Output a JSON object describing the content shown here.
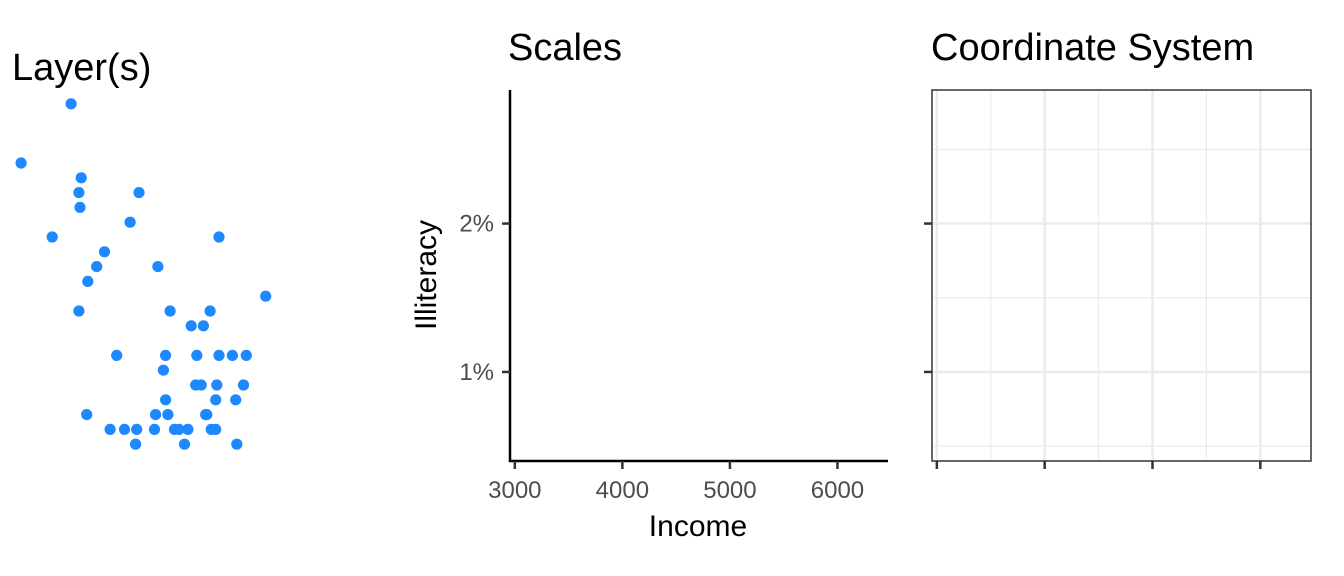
{
  "chart_data": [
    {
      "panel": "layers",
      "type": "scatter",
      "title": "Layer(s)",
      "xlabel": "",
      "ylabel": "",
      "xlim": [
        3000,
        6400
      ],
      "ylim": [
        0.4,
        2.9
      ],
      "axes": false,
      "grid": false,
      "point_color": "#1e88ff",
      "points": [
        [
          3100,
          2.4
        ],
        [
          3550,
          2.8
        ],
        [
          3640,
          2.3
        ],
        [
          3620,
          2.2
        ],
        [
          3630,
          2.1
        ],
        [
          3380,
          1.9
        ],
        [
          4160,
          2.2
        ],
        [
          4330,
          1.7
        ],
        [
          4880,
          1.9
        ],
        [
          4080,
          2.0
        ],
        [
          3850,
          1.8
        ],
        [
          3780,
          1.7
        ],
        [
          3700,
          1.6
        ],
        [
          3620,
          1.4
        ],
        [
          5300,
          1.5
        ],
        [
          4440,
          1.4
        ],
        [
          4800,
          1.4
        ],
        [
          4630,
          1.3
        ],
        [
          4740,
          1.3
        ],
        [
          4400,
          1.1
        ],
        [
          4680,
          1.1
        ],
        [
          4880,
          1.1
        ],
        [
          5000,
          1.1
        ],
        [
          5125,
          1.1
        ],
        [
          4670,
          0.9
        ],
        [
          4720,
          0.9
        ],
        [
          4860,
          0.9
        ],
        [
          5100,
          0.9
        ],
        [
          3960,
          1.1
        ],
        [
          4380,
          1.0
        ],
        [
          4400,
          0.8
        ],
        [
          4420,
          0.7
        ],
        [
          3690,
          0.7
        ],
        [
          3900,
          0.6
        ],
        [
          4030,
          0.6
        ],
        [
          4140,
          0.6
        ],
        [
          4300,
          0.6
        ],
        [
          4310,
          0.7
        ],
        [
          4480,
          0.6
        ],
        [
          4520,
          0.6
        ],
        [
          4600,
          0.6
        ],
        [
          4810,
          0.6
        ],
        [
          4850,
          0.6
        ],
        [
          4130,
          0.5
        ],
        [
          4570,
          0.5
        ],
        [
          4770,
          0.7
        ],
        [
          4760,
          0.7
        ],
        [
          4850,
          0.8
        ],
        [
          5030,
          0.8
        ],
        [
          5040,
          0.5
        ]
      ]
    },
    {
      "panel": "scales",
      "type": "scatter",
      "title": "Scales",
      "xlabel": "Income",
      "ylabel": "Illiteracy",
      "xlim": [
        2955,
        6470
      ],
      "ylim": [
        0.4,
        2.9
      ],
      "x_ticks": [
        3000,
        4000,
        5000,
        6000
      ],
      "x_tick_labels": [
        "3000",
        "4000",
        "5000",
        "6000"
      ],
      "y_ticks": [
        1,
        2
      ],
      "y_tick_labels": [
        "1%",
        "2%"
      ],
      "points": []
    },
    {
      "panel": "coordinate-system",
      "type": "scatter",
      "title": "Coordinate System",
      "xlabel": "",
      "ylabel": "",
      "xlim": [
        2955,
        6470
      ],
      "ylim": [
        0.4,
        2.9
      ],
      "x_ticks": [
        3000,
        4000,
        5000,
        6000
      ],
      "x_minor_ticks": [
        3500,
        4500,
        5500
      ],
      "y_ticks": [
        1,
        2
      ],
      "y_minor_ticks": [
        0.5,
        1.5,
        2.5
      ],
      "grid": true,
      "points": []
    }
  ]
}
